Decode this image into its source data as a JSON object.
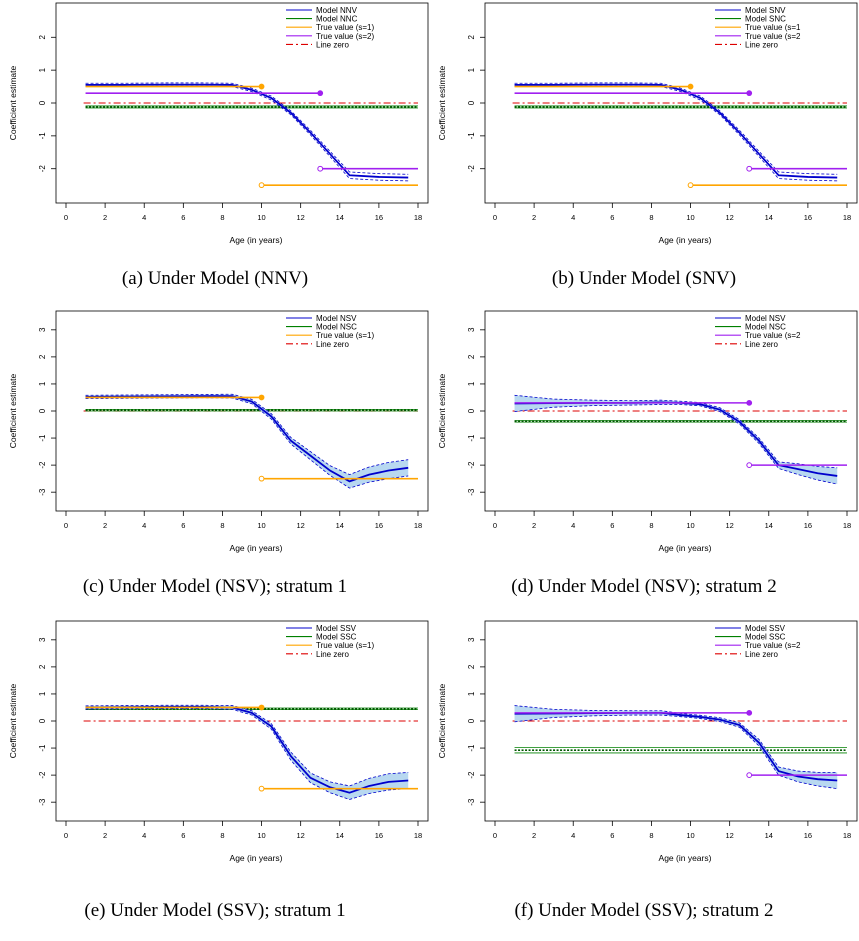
{
  "chart_data": [
    {
      "type": "line",
      "caption": "(a) Under Model (NNV)",
      "xlabel": "Age (in years)",
      "ylabel": "Coefficient estimate",
      "xlim": [
        0,
        18
      ],
      "ylim": [
        -2.8,
        2.8
      ],
      "xticks": [
        0,
        2,
        4,
        6,
        8,
        10,
        12,
        14,
        16,
        18
      ],
      "yticks": [
        -2,
        -1,
        0,
        1,
        2
      ],
      "legend": {
        "placement": "top-right",
        "entries": [
          {
            "label": "Model NNV",
            "color": "#0000cc",
            "dash": "solid"
          },
          {
            "label": "Model NNC",
            "color": "#008000",
            "dash": "solid"
          },
          {
            "label": "True value (s=1)",
            "color": "#ffa500",
            "dash": "solid"
          },
          {
            "label": "True value (s=2)",
            "color": "#a020f0",
            "dash": "solid"
          },
          {
            "label": "Line zero",
            "color": "#dd0000",
            "dash": "dashdot"
          }
        ]
      },
      "varying": {
        "x": [
          1,
          3,
          5,
          7,
          8.5,
          9.5,
          10.5,
          11.5,
          12.5,
          13.5,
          14.5,
          16,
          17.5
        ],
        "y": [
          0.55,
          0.55,
          0.56,
          0.56,
          0.55,
          0.4,
          0.15,
          -0.3,
          -0.9,
          -1.55,
          -2.2,
          -2.25,
          -2.27
        ],
        "halfwidth": [
          0.05,
          0.05,
          0.05,
          0.05,
          0.05,
          0.05,
          0.06,
          0.06,
          0.07,
          0.08,
          0.1,
          0.1,
          0.1
        ],
        "show_band": false
      },
      "constant": {
        "value": -0.12,
        "halfwidth": 0.03
      },
      "true_values": [
        {
          "stratum": 1,
          "x": [
            1,
            10,
            10,
            18
          ],
          "y": [
            0.5,
            0.5,
            -2.5,
            -2.5
          ],
          "color": "#ffa500"
        },
        {
          "stratum": 2,
          "x": [
            1,
            13,
            13,
            18
          ],
          "y": [
            0.3,
            0.3,
            -2.0,
            -2.0
          ],
          "color": "#a020f0"
        }
      ]
    },
    {
      "type": "line",
      "caption": "(b) Under Model (SNV)",
      "xlabel": "Age (in years)",
      "ylabel": "Coefficient estimate",
      "xlim": [
        0,
        18
      ],
      "ylim": [
        -2.8,
        2.8
      ],
      "xticks": [
        0,
        2,
        4,
        6,
        8,
        10,
        12,
        14,
        16,
        18
      ],
      "yticks": [
        -2,
        -1,
        0,
        1,
        2
      ],
      "legend": {
        "placement": "top-right",
        "entries": [
          {
            "label": "Model SNV",
            "color": "#0000cc",
            "dash": "solid"
          },
          {
            "label": "Model SNC",
            "color": "#008000",
            "dash": "solid"
          },
          {
            "label": "True value (s=1",
            "color": "#ffa500",
            "dash": "solid"
          },
          {
            "label": "True value (s=2",
            "color": "#a020f0",
            "dash": "solid"
          },
          {
            "label": "Line zero",
            "color": "#dd0000",
            "dash": "dashdot"
          }
        ]
      },
      "varying": {
        "x": [
          1,
          3,
          5,
          7,
          8.5,
          9.5,
          10.5,
          11.5,
          12.5,
          13.5,
          14.5,
          16,
          17.5
        ],
        "y": [
          0.55,
          0.55,
          0.56,
          0.56,
          0.55,
          0.4,
          0.15,
          -0.3,
          -0.9,
          -1.55,
          -2.2,
          -2.25,
          -2.27
        ],
        "halfwidth": [
          0.05,
          0.05,
          0.05,
          0.05,
          0.05,
          0.05,
          0.06,
          0.06,
          0.07,
          0.08,
          0.1,
          0.1,
          0.1
        ],
        "show_band": false
      },
      "constant": {
        "value": -0.12,
        "halfwidth": 0.03
      },
      "true_values": [
        {
          "stratum": 1,
          "x": [
            1,
            10,
            10,
            18
          ],
          "y": [
            0.5,
            0.5,
            -2.5,
            -2.5
          ],
          "color": "#ffa500"
        },
        {
          "stratum": 2,
          "x": [
            1,
            13,
            13,
            18
          ],
          "y": [
            0.3,
            0.3,
            -2.0,
            -2.0
          ],
          "color": "#a020f0"
        }
      ]
    },
    {
      "type": "line",
      "caption": "(c) Under Model (NSV); stratum 1",
      "xlabel": "Age (in years)",
      "ylabel": "Coefficient estimate",
      "xlim": [
        0,
        18
      ],
      "ylim": [
        -3.4,
        3.4
      ],
      "xticks": [
        0,
        2,
        4,
        6,
        8,
        10,
        12,
        14,
        16,
        18
      ],
      "yticks": [
        -3,
        -2,
        -1,
        0,
        1,
        2,
        3
      ],
      "legend": {
        "placement": "top-right",
        "entries": [
          {
            "label": "Model NSV",
            "color": "#0000cc",
            "dash": "solid"
          },
          {
            "label": "Model NSC",
            "color": "#008000",
            "dash": "solid"
          },
          {
            "label": "True value (s=1)",
            "color": "#ffa500",
            "dash": "solid"
          },
          {
            "label": "Line zero",
            "color": "#dd0000",
            "dash": "dashdot"
          }
        ]
      },
      "varying": {
        "x": [
          1,
          3,
          5,
          7,
          8.5,
          9.5,
          10.5,
          11.5,
          12.5,
          13.5,
          14.5,
          15.5,
          16.5,
          17.5
        ],
        "y": [
          0.52,
          0.53,
          0.54,
          0.55,
          0.55,
          0.35,
          -0.2,
          -1.1,
          -1.65,
          -2.2,
          -2.6,
          -2.35,
          -2.2,
          -2.1
        ],
        "halfwidth": [
          0.06,
          0.06,
          0.06,
          0.06,
          0.07,
          0.08,
          0.1,
          0.12,
          0.15,
          0.18,
          0.25,
          0.28,
          0.3,
          0.3
        ],
        "show_band": true
      },
      "constant": {
        "value": 0.03,
        "halfwidth": 0.03
      },
      "true_values": [
        {
          "stratum": 1,
          "x": [
            1,
            10,
            10,
            18
          ],
          "y": [
            0.5,
            0.5,
            -2.5,
            -2.5
          ],
          "color": "#ffa500"
        }
      ]
    },
    {
      "type": "line",
      "caption": "(d) Under Model (NSV); stratum 2",
      "xlabel": "Age (in years)",
      "ylabel": "Coefficient estimate",
      "xlim": [
        0,
        18
      ],
      "ylim": [
        -3.4,
        3.4
      ],
      "xticks": [
        0,
        2,
        4,
        6,
        8,
        10,
        12,
        14,
        16,
        18
      ],
      "yticks": [
        -3,
        -2,
        -1,
        0,
        1,
        2,
        3
      ],
      "legend": {
        "placement": "top-right",
        "entries": [
          {
            "label": "Model NSV",
            "color": "#0000cc",
            "dash": "solid"
          },
          {
            "label": "Model NSC",
            "color": "#008000",
            "dash": "solid"
          },
          {
            "label": "True value (s=2",
            "color": "#a020f0",
            "dash": "solid"
          },
          {
            "label": "Line zero",
            "color": "#dd0000",
            "dash": "dashdot"
          }
        ]
      },
      "varying": {
        "x": [
          1,
          3,
          5,
          7,
          8.5,
          9.5,
          10.5,
          11.5,
          12.5,
          13.5,
          14.5,
          15.5,
          16.5,
          17.5
        ],
        "y": [
          0.28,
          0.29,
          0.3,
          0.3,
          0.32,
          0.3,
          0.25,
          0.05,
          -0.4,
          -1.1,
          -2.0,
          -2.15,
          -2.3,
          -2.4
        ],
        "halfwidth": [
          0.3,
          0.15,
          0.1,
          0.08,
          0.08,
          0.06,
          0.06,
          0.07,
          0.08,
          0.1,
          0.12,
          0.2,
          0.25,
          0.3
        ],
        "show_band": true
      },
      "constant": {
        "value": -0.38,
        "halfwidth": 0.03
      },
      "true_values": [
        {
          "stratum": 2,
          "x": [
            1,
            13,
            13,
            18
          ],
          "y": [
            0.3,
            0.3,
            -2.0,
            -2.0
          ],
          "color": "#a020f0"
        }
      ]
    },
    {
      "type": "line",
      "caption": "(e) Under Model (SSV); stratum 1",
      "xlabel": "Age (in years)",
      "ylabel": "Coefficient estimate",
      "xlim": [
        0,
        18
      ],
      "ylim": [
        -3.4,
        3.4
      ],
      "xticks": [
        0,
        2,
        4,
        6,
        8,
        10,
        12,
        14,
        16,
        18
      ],
      "yticks": [
        -3,
        -2,
        -1,
        0,
        1,
        2,
        3
      ],
      "legend": {
        "placement": "top-right",
        "entries": [
          {
            "label": "Model SSV",
            "color": "#0000cc",
            "dash": "solid"
          },
          {
            "label": "Model SSC",
            "color": "#008000",
            "dash": "solid"
          },
          {
            "label": "True value (s=1)",
            "color": "#ffa500",
            "dash": "solid"
          },
          {
            "label": "Line zero",
            "color": "#dd0000",
            "dash": "dashdot"
          }
        ]
      },
      "varying": {
        "x": [
          1,
          3,
          5,
          7,
          8.5,
          9.5,
          10.5,
          11.5,
          12.5,
          13.5,
          14.5,
          15.5,
          16.5,
          17.5
        ],
        "y": [
          0.5,
          0.51,
          0.52,
          0.52,
          0.5,
          0.3,
          -0.2,
          -1.3,
          -2.1,
          -2.45,
          -2.65,
          -2.4,
          -2.25,
          -2.2
        ],
        "halfwidth": [
          0.06,
          0.06,
          0.06,
          0.06,
          0.07,
          0.08,
          0.1,
          0.15,
          0.18,
          0.2,
          0.25,
          0.28,
          0.3,
          0.3
        ],
        "show_band": true
      },
      "constant": {
        "value": 0.45,
        "halfwidth": 0.03
      },
      "true_values": [
        {
          "stratum": 1,
          "x": [
            1,
            10,
            10,
            18
          ],
          "y": [
            0.5,
            0.5,
            -2.5,
            -2.5
          ],
          "color": "#ffa500"
        }
      ]
    },
    {
      "type": "line",
      "caption": "(f) Under Model (SSV); stratum 2",
      "xlabel": "Age (in years)",
      "ylabel": "Coefficient estimate",
      "xlim": [
        0,
        18
      ],
      "ylim": [
        -3.4,
        3.4
      ],
      "xticks": [
        0,
        2,
        4,
        6,
        8,
        10,
        12,
        14,
        16,
        18
      ],
      "yticks": [
        -3,
        -2,
        -1,
        0,
        1,
        2,
        3
      ],
      "legend": {
        "placement": "top-right",
        "entries": [
          {
            "label": "Model SSV",
            "color": "#0000cc",
            "dash": "solid"
          },
          {
            "label": "Model SSC",
            "color": "#008000",
            "dash": "solid"
          },
          {
            "label": "True value (s=2",
            "color": "#a020f0",
            "dash": "solid"
          },
          {
            "label": "Line zero",
            "color": "#dd0000",
            "dash": "dashdot"
          }
        ]
      },
      "varying": {
        "x": [
          1,
          3,
          5,
          7,
          8.5,
          9.5,
          10.5,
          11.5,
          12.5,
          13.5,
          14.5,
          15.5,
          16.5,
          17.5
        ],
        "y": [
          0.27,
          0.28,
          0.29,
          0.3,
          0.3,
          0.22,
          0.15,
          0.05,
          -0.15,
          -0.8,
          -1.85,
          -2.05,
          -2.15,
          -2.2
        ],
        "halfwidth": [
          0.3,
          0.15,
          0.1,
          0.08,
          0.08,
          0.06,
          0.06,
          0.07,
          0.08,
          0.12,
          0.15,
          0.2,
          0.25,
          0.3
        ],
        "show_band": true
      },
      "constant": {
        "value": -1.08,
        "halfwidth": 0.1
      },
      "true_values": [
        {
          "stratum": 2,
          "x": [
            1,
            13,
            13,
            18
          ],
          "y": [
            0.3,
            0.3,
            -2.0,
            -2.0
          ],
          "color": "#a020f0"
        }
      ]
    }
  ]
}
